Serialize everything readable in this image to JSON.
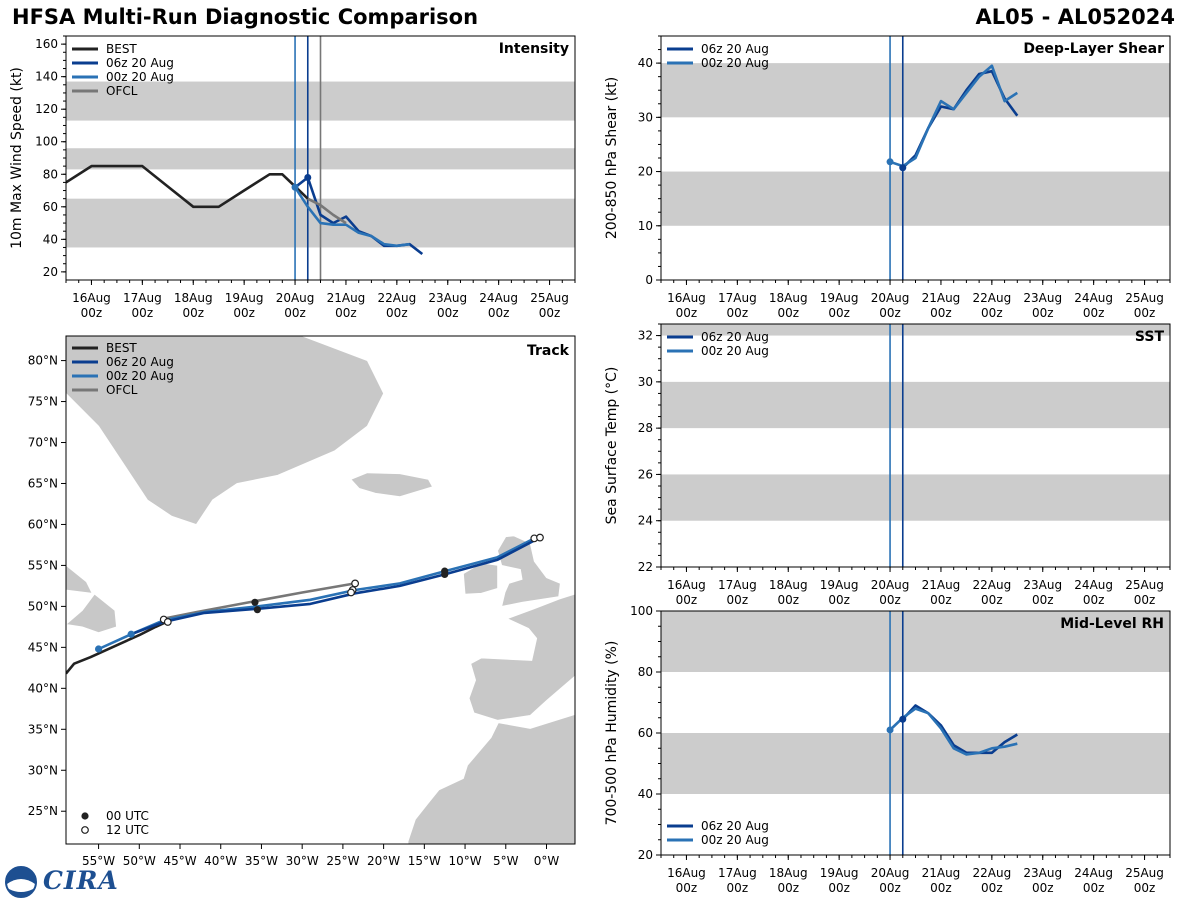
{
  "title_left": "HFSA Multi-Run Diagnostic Comparison",
  "title_right": "AL05 - AL052024",
  "logo_text": "CIRA",
  "colors": {
    "best": "#222222",
    "run06": "#0a3d8f",
    "run00": "#2a72b5",
    "ofcl": "#777777",
    "band": "#cccccc",
    "land": "#c8c8c8"
  },
  "time_ticks": [
    "16Aug\n00z",
    "17Aug\n00z",
    "18Aug\n00z",
    "19Aug\n00z",
    "20Aug\n00z",
    "21Aug\n00z",
    "22Aug\n00z",
    "23Aug\n00z",
    "24Aug\n00z",
    "25Aug\n00z"
  ],
  "chart_data": [
    {
      "type": "line",
      "id": "intensity",
      "title": "Intensity",
      "ylabel": "10m Max Wind Speed (kt)",
      "xlabel": "",
      "x_unit": "hours since 16Aug 00z",
      "xlim": [
        -12,
        228
      ],
      "ylim": [
        15,
        165
      ],
      "yticks": [
        20,
        40,
        60,
        80,
        100,
        120,
        140,
        160
      ],
      "bands": [
        [
          35,
          65
        ],
        [
          83,
          96
        ],
        [
          113,
          137
        ]
      ],
      "vlines": [
        {
          "x": 96,
          "series": "run00"
        },
        {
          "x": 102,
          "series": "run06"
        },
        {
          "x": 108,
          "series": "ofcl"
        }
      ],
      "legend": [
        "BEST",
        "06z 20 Aug",
        "00z 20 Aug",
        "OFCL"
      ],
      "legend_position": "top-left",
      "series": [
        {
          "name": "BEST",
          "key": "best",
          "x": [
            -12,
            0,
            12,
            24,
            36,
            48,
            60,
            72,
            84,
            90,
            96,
            102
          ],
          "y": [
            75,
            85,
            85,
            85,
            72.5,
            60,
            60,
            70,
            80,
            80,
            72.5,
            65
          ]
        },
        {
          "name": "06z 20 Aug",
          "key": "run06",
          "x": [
            96,
            102,
            108,
            114,
            120,
            126,
            132,
            138,
            144,
            150,
            156
          ],
          "y": [
            72,
            78,
            55,
            50,
            54,
            45,
            42,
            36,
            36,
            37,
            31
          ]
        },
        {
          "name": "00z 20 Aug",
          "key": "run00",
          "x": [
            96,
            102,
            108,
            114,
            120,
            126,
            132,
            138,
            144,
            150
          ],
          "y": [
            72,
            60,
            50,
            49,
            49,
            44,
            42,
            37,
            36,
            37
          ]
        },
        {
          "name": "OFCL",
          "key": "ofcl",
          "x": [
            102,
            108,
            114,
            120
          ],
          "y": [
            65,
            61,
            55,
            50
          ]
        }
      ],
      "markers": [
        {
          "key": "run00",
          "x": 96,
          "y": 72
        },
        {
          "key": "run06",
          "x": 102,
          "y": 78
        }
      ]
    },
    {
      "type": "line",
      "id": "shear",
      "title": "Deep-Layer Shear",
      "ylabel": "200-850 hPa Shear (kt)",
      "xlabel": "",
      "x_unit": "hours since 16Aug 00z",
      "xlim": [
        -12,
        228
      ],
      "ylim": [
        0,
        45
      ],
      "yticks": [
        0,
        10,
        20,
        30,
        40
      ],
      "bands": [
        [
          10,
          20
        ],
        [
          30,
          40
        ]
      ],
      "vlines": [
        {
          "x": 96,
          "series": "run00"
        },
        {
          "x": 102,
          "series": "run06"
        }
      ],
      "legend": [
        "06z 20 Aug",
        "00z 20 Aug"
      ],
      "legend_position": "top-left",
      "series": [
        {
          "name": "06z 20 Aug",
          "key": "run06",
          "x": [
            102,
            108,
            114,
            120,
            126,
            132,
            138,
            144,
            150,
            156
          ],
          "y": [
            20.7,
            23,
            28,
            32,
            31.5,
            35,
            38,
            38.5,
            33.5,
            30.3
          ]
        },
        {
          "name": "00z 20 Aug",
          "key": "run00",
          "x": [
            96,
            102,
            108,
            114,
            120,
            126,
            132,
            138,
            144,
            150,
            156
          ],
          "y": [
            21.8,
            21,
            22.5,
            28,
            33,
            31.5,
            34.5,
            37.5,
            39.5,
            33,
            34.5
          ]
        }
      ],
      "markers": [
        {
          "key": "run00",
          "x": 96,
          "y": 21.8
        },
        {
          "key": "run06",
          "x": 102,
          "y": 20.7
        }
      ]
    },
    {
      "type": "line",
      "id": "sst",
      "title": "SST",
      "ylabel": "Sea Surface Temp (°C)",
      "xlabel": "",
      "x_unit": "hours since 16Aug 00z",
      "xlim": [
        -12,
        228
      ],
      "ylim": [
        22,
        32.5
      ],
      "yticks": [
        22,
        24,
        26,
        28,
        30,
        32
      ],
      "bands": [
        [
          24,
          26
        ],
        [
          28,
          30
        ],
        [
          32,
          32.5
        ]
      ],
      "vlines": [
        {
          "x": 96,
          "series": "run00"
        },
        {
          "x": 102,
          "series": "run06"
        }
      ],
      "legend": [
        "06z 20 Aug",
        "00z 20 Aug"
      ],
      "legend_position": "top-left",
      "series": [],
      "markers": []
    },
    {
      "type": "line",
      "id": "rh",
      "title": "Mid-Level RH",
      "ylabel": "700-500 hPa Humidity (%)",
      "xlabel": "",
      "x_unit": "hours since 16Aug 00z",
      "xlim": [
        -12,
        228
      ],
      "ylim": [
        20,
        100
      ],
      "yticks": [
        20,
        40,
        60,
        80,
        100
      ],
      "bands": [
        [
          40,
          60
        ],
        [
          80,
          100
        ]
      ],
      "vlines": [
        {
          "x": 96,
          "series": "run00"
        },
        {
          "x": 102,
          "series": "run06"
        }
      ],
      "legend": [
        "06z 20 Aug",
        "00z 20 Aug"
      ],
      "legend_position": "bottom-left",
      "series": [
        {
          "name": "06z 20 Aug",
          "key": "run06",
          "x": [
            102,
            108,
            114,
            120,
            126,
            132,
            138,
            144,
            150,
            156
          ],
          "y": [
            64.5,
            69,
            66.5,
            62.5,
            56,
            53.5,
            53.5,
            53.5,
            57,
            59.5
          ]
        },
        {
          "name": "00z 20 Aug",
          "key": "run00",
          "x": [
            96,
            102,
            108,
            114,
            120,
            126,
            132,
            138,
            144,
            150,
            156
          ],
          "y": [
            61,
            65,
            68,
            66.5,
            61.5,
            55,
            53,
            53.5,
            55,
            55.5,
            56.5
          ]
        }
      ],
      "markers": [
        {
          "key": "run00",
          "x": 96,
          "y": 61
        },
        {
          "key": "run06",
          "x": 102,
          "y": 64.5
        }
      ]
    },
    {
      "type": "scatter",
      "id": "track",
      "title": "Track",
      "xlabel": "Longitude",
      "ylabel": "Latitude",
      "xlim": [
        -59,
        3.5
      ],
      "ylim": [
        21,
        83
      ],
      "lon_ticks": [
        -55,
        -50,
        -45,
        -40,
        -35,
        -30,
        -25,
        -20,
        -15,
        -10,
        -5,
        0
      ],
      "lon_labels": [
        "55°W",
        "50°W",
        "45°W",
        "40°W",
        "35°W",
        "30°W",
        "25°W",
        "20°W",
        "15°W",
        "10°W",
        "5°W",
        "0°W"
      ],
      "lat_ticks": [
        25,
        30,
        35,
        40,
        45,
        50,
        55,
        60,
        65,
        70,
        75,
        80
      ],
      "lat_labels": [
        "25°N",
        "30°N",
        "35°N",
        "40°N",
        "45°N",
        "50°N",
        "55°N",
        "60°N",
        "65°N",
        "70°N",
        "75°N",
        "80°N"
      ],
      "legend": [
        "BEST",
        "06z 20 Aug",
        "00z 20 Aug",
        "OFCL"
      ],
      "legend_position": "top-left",
      "time_legend": [
        "00 UTC",
        "12 UTC"
      ],
      "series": [
        {
          "name": "BEST",
          "key": "best",
          "lon": [
            -59,
            -58,
            -56,
            -54,
            -52,
            -50,
            -48,
            -46
          ],
          "lat": [
            41.8,
            43,
            43.8,
            44.7,
            45.6,
            46.5,
            47.5,
            48.4
          ]
        },
        {
          "name": "OFCL",
          "key": "ofcl",
          "lon": [
            -47,
            -43,
            -36,
            -30,
            -23.5
          ],
          "lat": [
            48.5,
            49.3,
            50.6,
            51.7,
            52.8
          ]
        },
        {
          "name": "00z 20 Aug",
          "key": "run00",
          "lon": [
            -55,
            -51,
            -47,
            -42,
            -35.5,
            -29,
            -23.5,
            -18,
            -12.5,
            -6,
            -1.5
          ],
          "lat": [
            44.8,
            46.6,
            48.3,
            49.3,
            50,
            50.8,
            52,
            52.8,
            54.3,
            56,
            58.3
          ]
        },
        {
          "name": "06z 20 Aug",
          "key": "run06",
          "lon": [
            -51,
            -47,
            -42,
            -35.5,
            -29,
            -23.5,
            -18,
            -12.5,
            -6,
            -1
          ],
          "lat": [
            46.6,
            48.1,
            49.2,
            49.7,
            50.3,
            51.6,
            52.5,
            53.9,
            55.7,
            58.3
          ]
        }
      ],
      "points_00utc": [
        {
          "key": "run00",
          "lon": -55,
          "lat": 44.8
        },
        {
          "key": "run00",
          "lon": -51,
          "lat": 46.6
        },
        {
          "key": "best",
          "lon": -35.8,
          "lat": 50.5
        },
        {
          "key": "best",
          "lon": -35.5,
          "lat": 49.6
        },
        {
          "key": "best",
          "lon": -12.5,
          "lat": 54.3
        },
        {
          "key": "best",
          "lon": -12.5,
          "lat": 53.9
        }
      ],
      "points_12utc": [
        {
          "lon": -47,
          "lat": 48.4
        },
        {
          "lon": -46.5,
          "lat": 48.1
        },
        {
          "lon": -23.5,
          "lat": 52.8
        },
        {
          "lon": -23.8,
          "lat": 52
        },
        {
          "lon": -24,
          "lat": 51.7
        },
        {
          "lon": -1.5,
          "lat": 58.3
        },
        {
          "lon": -0.8,
          "lat": 58.4
        }
      ]
    }
  ]
}
